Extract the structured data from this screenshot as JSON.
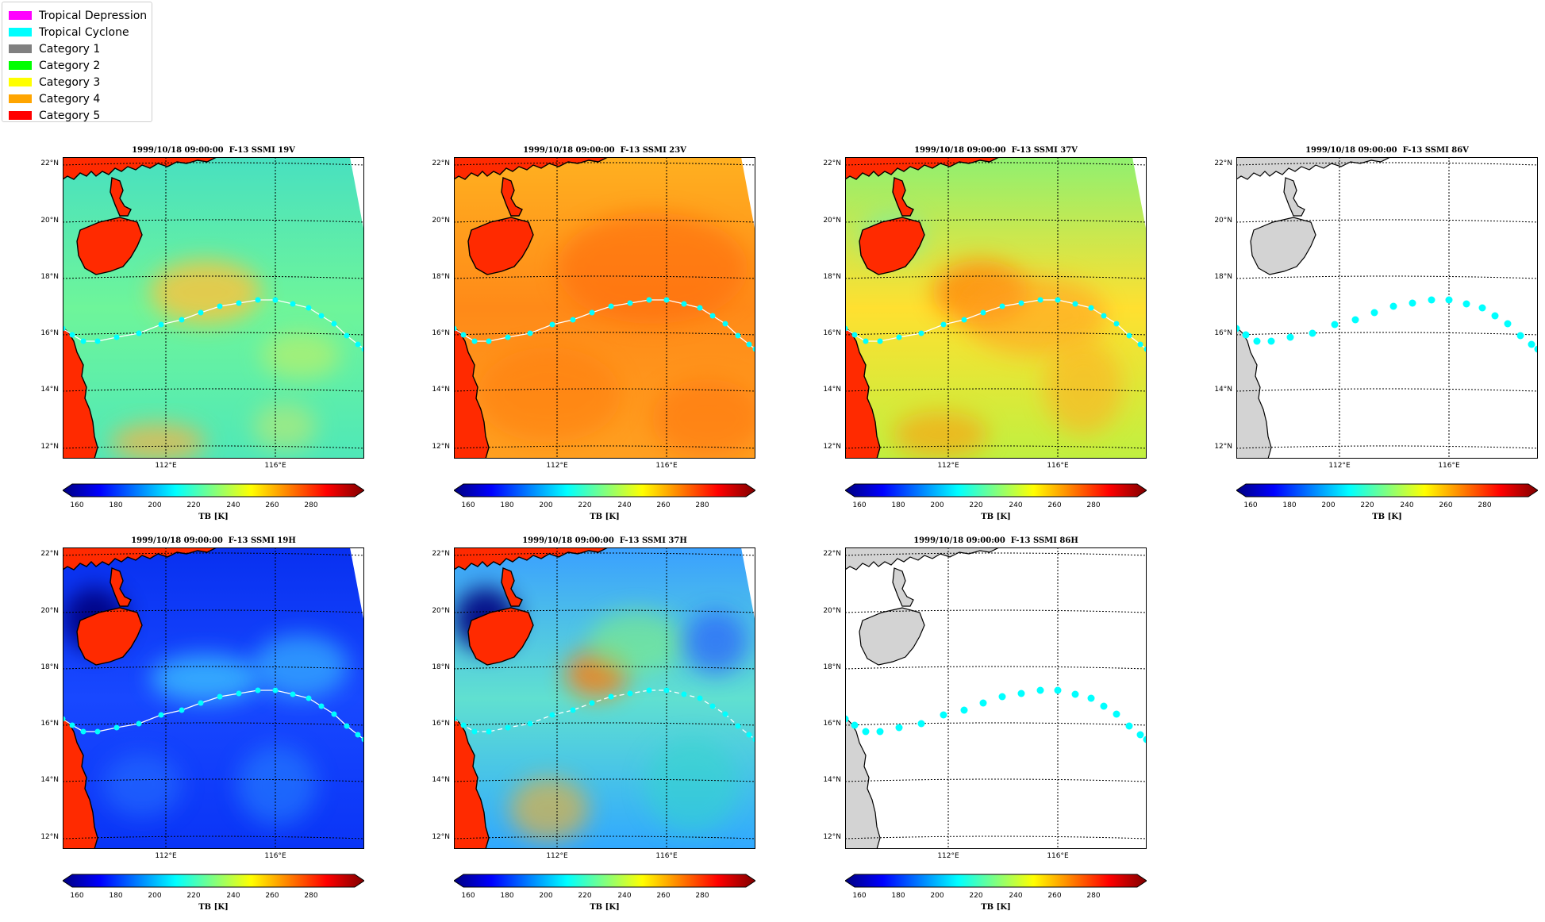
{
  "legend": [
    {
      "label": "Tropical Depression",
      "color": "#ff00ff"
    },
    {
      "label": "Tropical Cyclone",
      "color": "#00ffff"
    },
    {
      "label": "Category 1",
      "color": "#808080"
    },
    {
      "label": "Category 2",
      "color": "#00ff00"
    },
    {
      "label": "Category 3",
      "color": "#ffff00"
    },
    {
      "label": "Category 4",
      "color": "#ffa500"
    },
    {
      "label": "Category 5",
      "color": "#ff0000"
    }
  ],
  "panels": [
    {
      "title": "1999/10/18 09:00:00  F-13 SSMI 19V",
      "field": "19V",
      "has_data": true
    },
    {
      "title": "1999/10/18 09:00:00  F-13 SSMI 23V",
      "field": "23V",
      "has_data": true
    },
    {
      "title": "1999/10/18 09:00:00  F-13 SSMI 37V",
      "field": "37V",
      "has_data": true
    },
    {
      "title": "1999/10/18 09:00:00  F-13 SSMI 86V",
      "field": "86V",
      "has_data": false
    },
    {
      "title": "1999/10/18 09:00:00  F-13 SSMI 19H",
      "field": "19H",
      "has_data": true
    },
    {
      "title": "1999/10/18 09:00:00  F-13 SSMI 37H",
      "field": "37H",
      "has_data": true
    },
    {
      "title": "1999/10/18 09:00:00  F-13 SSMI 86H",
      "field": "86H",
      "has_data": false
    }
  ],
  "lat_labels": [
    "22°N",
    "20°N",
    "18°N",
    "16°N",
    "14°N",
    "12°N"
  ],
  "lon_labels": [
    "112°E",
    "116°E"
  ],
  "colorbar": {
    "ticks": [
      "160",
      "180",
      "200",
      "220",
      "240",
      "260",
      "280"
    ],
    "label": "TB [K]",
    "colormap": "jet",
    "range": [
      150,
      300
    ]
  },
  "track_color": "#00ffff",
  "land_color_nodata": "#d3d3d3"
}
